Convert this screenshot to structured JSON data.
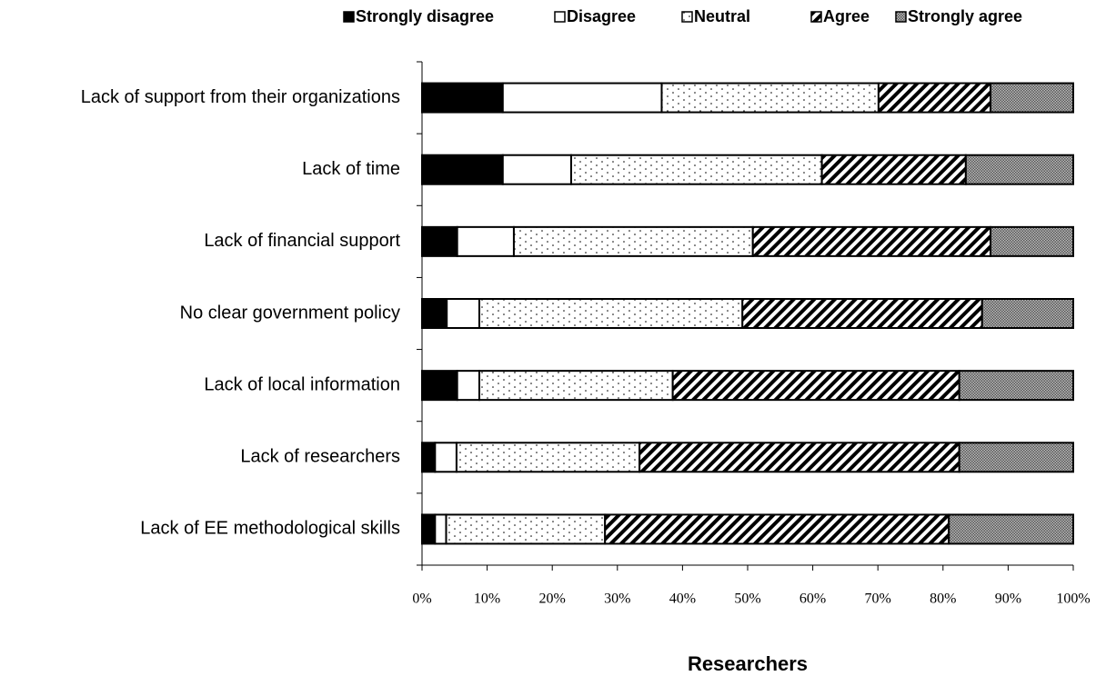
{
  "chart_data": {
    "type": "stacked-bar-horizontal",
    "categories": [
      "Lack of support from their organizations",
      "Lack of time",
      "Lack of financial support",
      "No clear government policy",
      "Lack of local information",
      "Lack of researchers",
      "Lack of EE methodological skills"
    ],
    "series": [
      {
        "name": "Strongly disagree",
        "color": "#000000",
        "pattern": "solid",
        "values": [
          12.4,
          12.4,
          5.4,
          3.8,
          5.4,
          2.0,
          2.0
        ]
      },
      {
        "name": "Disagree",
        "color": "#ffffff",
        "pattern": "solid",
        "values": [
          24.4,
          10.5,
          8.7,
          5.0,
          3.4,
          3.3,
          1.7
        ]
      },
      {
        "name": "Neutral",
        "color": "#ffffff",
        "pattern": "dots",
        "values": [
          33.3,
          38.5,
          36.7,
          40.4,
          29.7,
          28.1,
          24.4
        ]
      },
      {
        "name": "Agree",
        "color": "#000000",
        "pattern": "hatch",
        "values": [
          17.2,
          22.1,
          36.5,
          36.8,
          44.0,
          49.1,
          52.8
        ]
      },
      {
        "name": "Strongly agree",
        "color": "#888888",
        "pattern": "crosshatch",
        "values": [
          12.7,
          16.5,
          12.7,
          14.0,
          17.5,
          17.5,
          19.1
        ]
      }
    ],
    "xlabel": "Researchers",
    "xlim": [
      0,
      100
    ],
    "xticks": [
      {
        "value": 0,
        "label": "0%"
      },
      {
        "value": 10,
        "label": "10%"
      },
      {
        "value": 20,
        "label": "20%"
      },
      {
        "value": 30,
        "label": "30%"
      },
      {
        "value": 40,
        "label": "40%"
      },
      {
        "value": 50,
        "label": "50%"
      },
      {
        "value": 60,
        "label": "60%"
      },
      {
        "value": 70,
        "label": "70%"
      },
      {
        "value": 80,
        "label": "80%"
      },
      {
        "value": 90,
        "label": "90%"
      },
      {
        "value": 100,
        "label": "100%"
      }
    ],
    "legend": "top"
  }
}
